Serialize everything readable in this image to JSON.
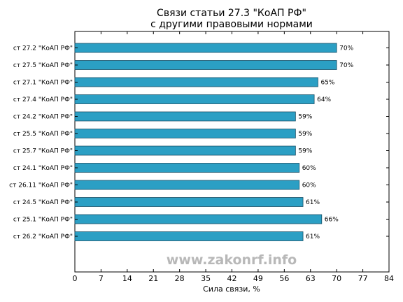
{
  "chart_data": {
    "type": "bar",
    "orientation": "horizontal",
    "title_line1": "Связи статьи 27.3 \"КоАП РФ\"",
    "title_line2": "с другими правовыми нормами",
    "xlabel": "Сила связи, %",
    "ylabel": "",
    "xlim": [
      0,
      84
    ],
    "xticks": [
      0,
      7,
      14,
      21,
      28,
      35,
      42,
      49,
      56,
      63,
      70,
      77,
      84
    ],
    "grid": false,
    "bar_color": "#2b9fc4",
    "watermark": "www.zakonrf.info",
    "categories": [
      "ст 27.2 \"КоАП РФ\"",
      "ст 27.5 \"КоАП РФ\"",
      "ст 27.1 \"КоАП РФ\"",
      "ст 27.4 \"КоАП РФ\"",
      "ст 24.2 \"КоАП РФ\"",
      "ст 25.5 \"КоАП РФ\"",
      "ст 25.7 \"КоАП РФ\"",
      "ст 24.1 \"КоАП РФ\"",
      "ст 26.11 \"КоАП РФ\"",
      "ст 24.5 \"КоАП РФ\"",
      "ст 25.1 \"КоАП РФ\"",
      "ст 26.2 \"КоАП РФ\""
    ],
    "values": [
      70,
      70,
      65,
      64,
      59,
      59,
      59,
      60,
      60,
      61,
      66,
      61
    ],
    "value_labels": [
      "70%",
      "70%",
      "65%",
      "64%",
      "59%",
      "59%",
      "59%",
      "60%",
      "60%",
      "61%",
      "66%",
      "61%"
    ]
  }
}
